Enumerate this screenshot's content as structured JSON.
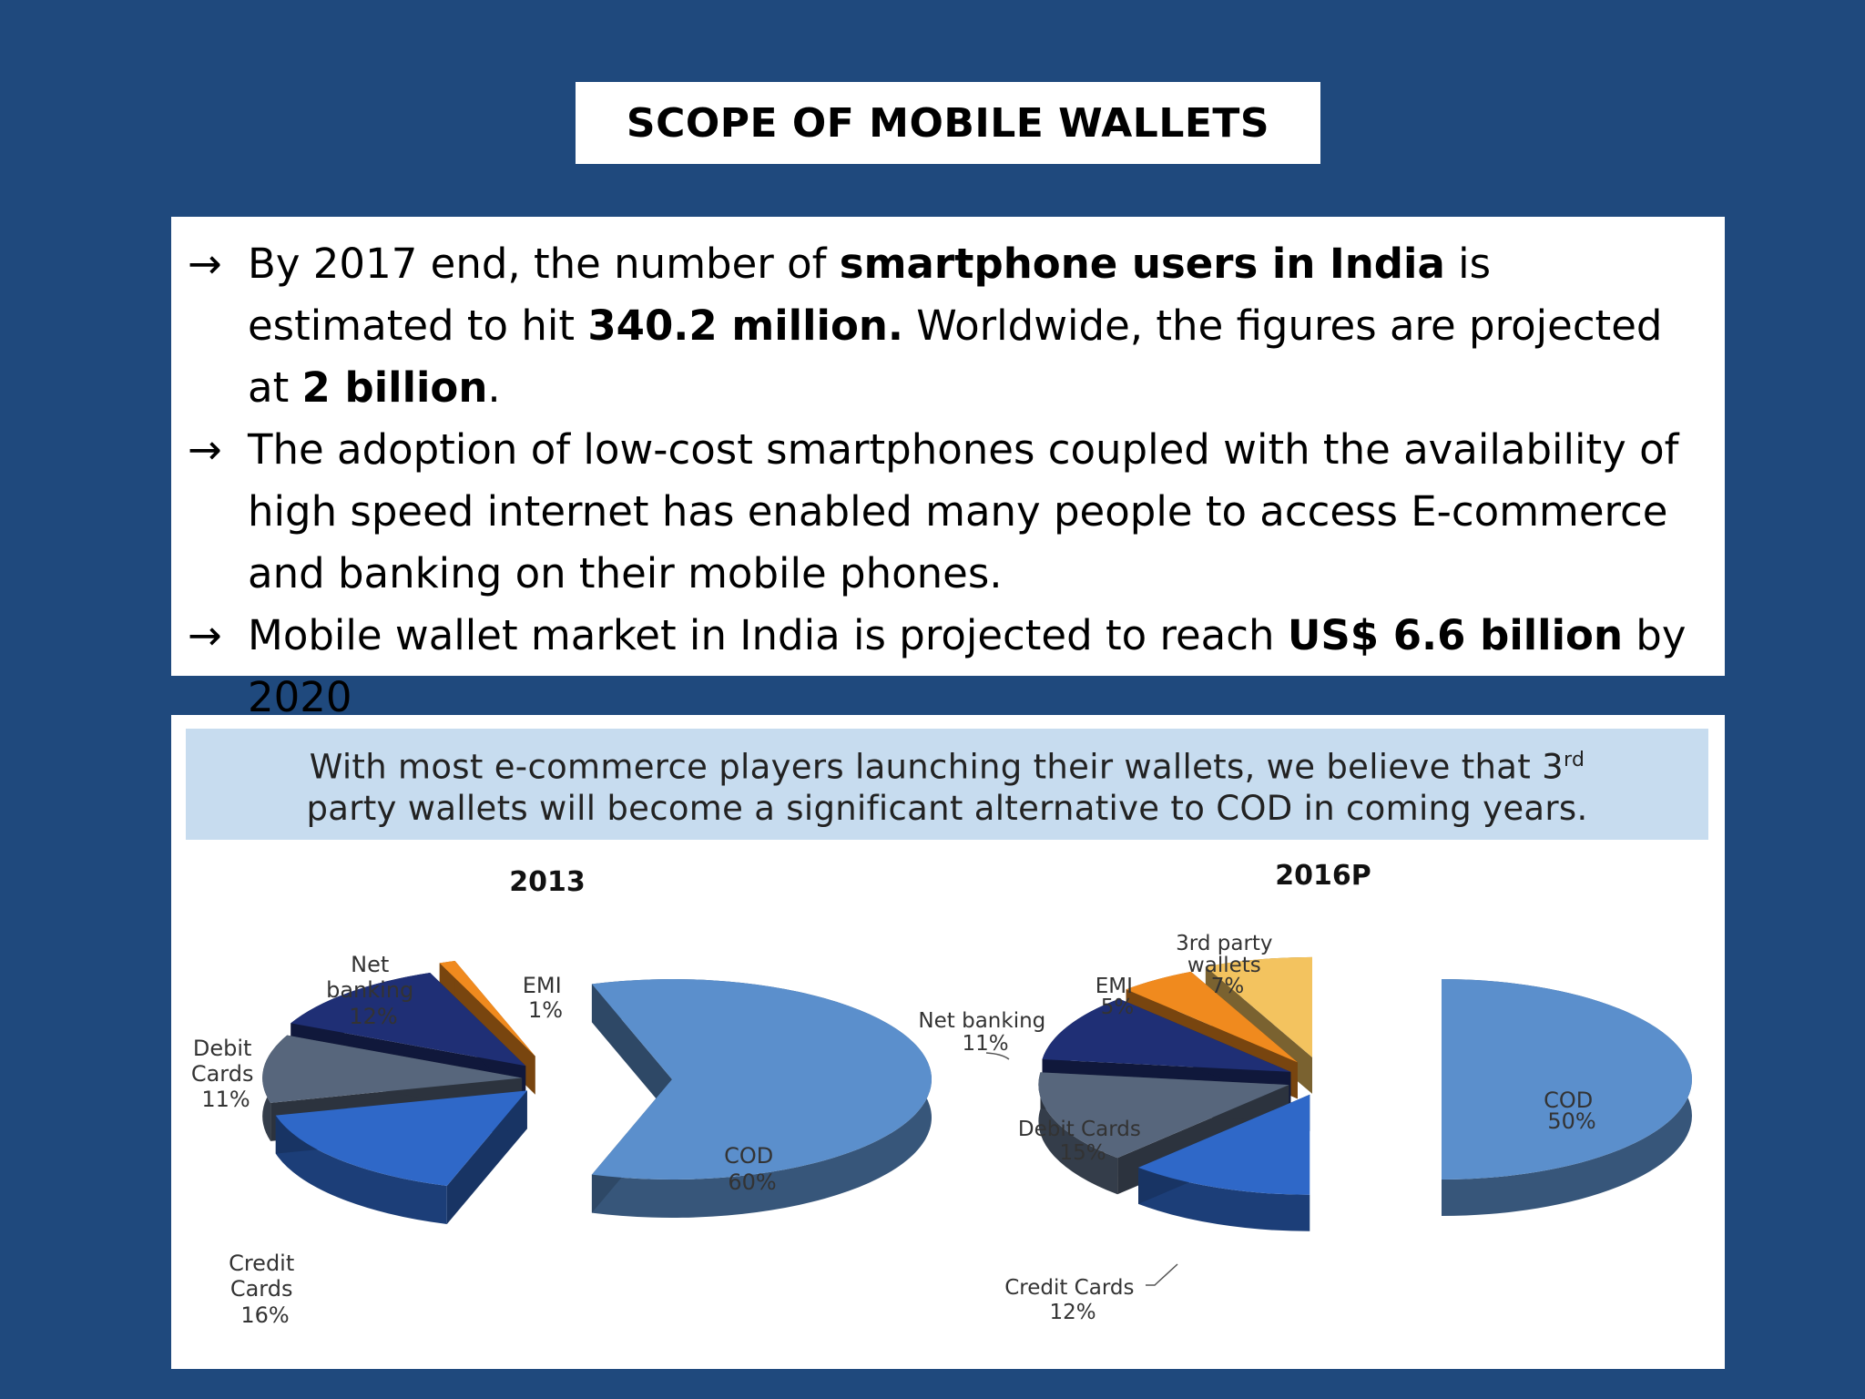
{
  "slide": {
    "title": "SCOPE OF MOBILE WALLETS",
    "bullets": {
      "b1": {
        "p1": "By 2017 end, the number of ",
        "bold1": "smartphone users in India",
        "p2": " is estimated to hit ",
        "bold2": "340.2 million.",
        "p3": " Worldwide, the figures are projected at ",
        "bold3": "2 billion",
        "p4": "."
      },
      "b2": {
        "p1": "The adoption of low-cost smartphones coupled with the availability of high speed internet has enabled many people to access E-commerce and banking on their mobile phones."
      },
      "b3": {
        "p1": "Mobile wallet market in India is projected to reach ",
        "bold1": "US$ 6.6 billion",
        "p2": " by 2020"
      },
      "arrow": "→"
    }
  },
  "banner": {
    "line1": "With most e-commerce players launching their wallets, we believe that 3",
    "line1_sup": "rd",
    "line2": "party wallets will become a significant alternative to COD in coming years."
  },
  "colors": {
    "background": "#1f497d",
    "banner_bg": "#c7dcef",
    "cod": "#5b8fcc",
    "credit_cards": "#2f68c8",
    "debit_cards": "#57667c",
    "net_banking": "#1f2f75",
    "emi": "#f08a1e",
    "third_party_wallets": "#f3c35f"
  },
  "chart_data": [
    {
      "type": "pie",
      "title": "2013",
      "labels": [
        "COD",
        "Credit Cards",
        "Debit Cards",
        "Net banking",
        "EMI"
      ],
      "values": [
        60,
        16,
        11,
        12,
        1
      ],
      "label_text": {
        "cod": [
          "COD",
          "60%"
        ],
        "credit": [
          "Credit",
          "Cards",
          "16%"
        ],
        "debit": [
          "Debit",
          "Cards",
          "11%"
        ],
        "net": [
          "Net",
          "banking",
          "12%"
        ],
        "emi": [
          "EMI",
          "1%"
        ]
      }
    },
    {
      "type": "pie",
      "title": "2016P",
      "labels": [
        "COD",
        "Credit Cards",
        "Debit Cards",
        "Net banking",
        "EMI",
        "3rd party wallets"
      ],
      "values": [
        50,
        12,
        15,
        11,
        5,
        7
      ],
      "label_text": {
        "cod": [
          "COD",
          "50%"
        ],
        "credit": [
          "Credit Cards",
          "12%"
        ],
        "debit": [
          "Debit Cards",
          "15%"
        ],
        "net": [
          "Net banking",
          "11%"
        ],
        "emi": [
          "EMI",
          "5%"
        ],
        "wallets": [
          "3rd party",
          "wallets",
          "7%"
        ]
      }
    }
  ]
}
